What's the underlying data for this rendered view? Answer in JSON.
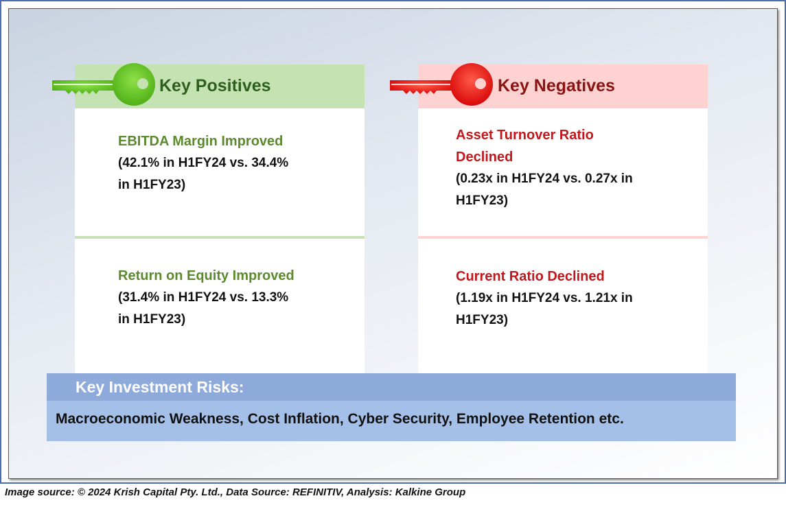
{
  "positives": {
    "header": "Key Positives",
    "items": [
      {
        "title": "EBITDA Margin Improved",
        "detail_lines": [
          "(42.1% in H1FY24 vs. 34.4%",
          "in H1FY23)"
        ]
      },
      {
        "title": "Return on Equity Improved",
        "detail_lines": [
          "(31.4% in H1FY24 vs. 13.3%",
          "in H1FY23)"
        ]
      }
    ],
    "colors": {
      "header_bg": "#c5e2b3",
      "title": "#5b8a2e",
      "key": "#66cc22"
    }
  },
  "negatives": {
    "header": "Key Negatives",
    "items": [
      {
        "title_lines": [
          "Asset Turnover Ratio",
          "Declined"
        ],
        "detail_lines": [
          "(0.23x in H1FY24 vs. 0.27x in",
          "H1FY23)"
        ]
      },
      {
        "title_lines": [
          "Current Ratio Declined"
        ],
        "detail_lines": [
          "(1.19x in H1FY24 vs. 1.21x in",
          "H1FY23)"
        ]
      }
    ],
    "colors": {
      "header_bg": "#fdd2d1",
      "title": "#c3171c",
      "key": "#ee1111"
    }
  },
  "risks": {
    "header": "Key Investment Risks:",
    "text": "Macroeconomic Weakness, Cost Inflation, Cyber Security, Employee Retention etc.",
    "colors": {
      "header_bg": "#8eaadb",
      "body_bg": "#a5c0e8"
    }
  },
  "footer": {
    "text": "Image source: © 2024 Krish Capital Pty. Ltd., Data Source: REFINITIV, Analysis: Kalkine Group"
  },
  "icons": [
    "green-key-icon",
    "red-key-icon"
  ]
}
